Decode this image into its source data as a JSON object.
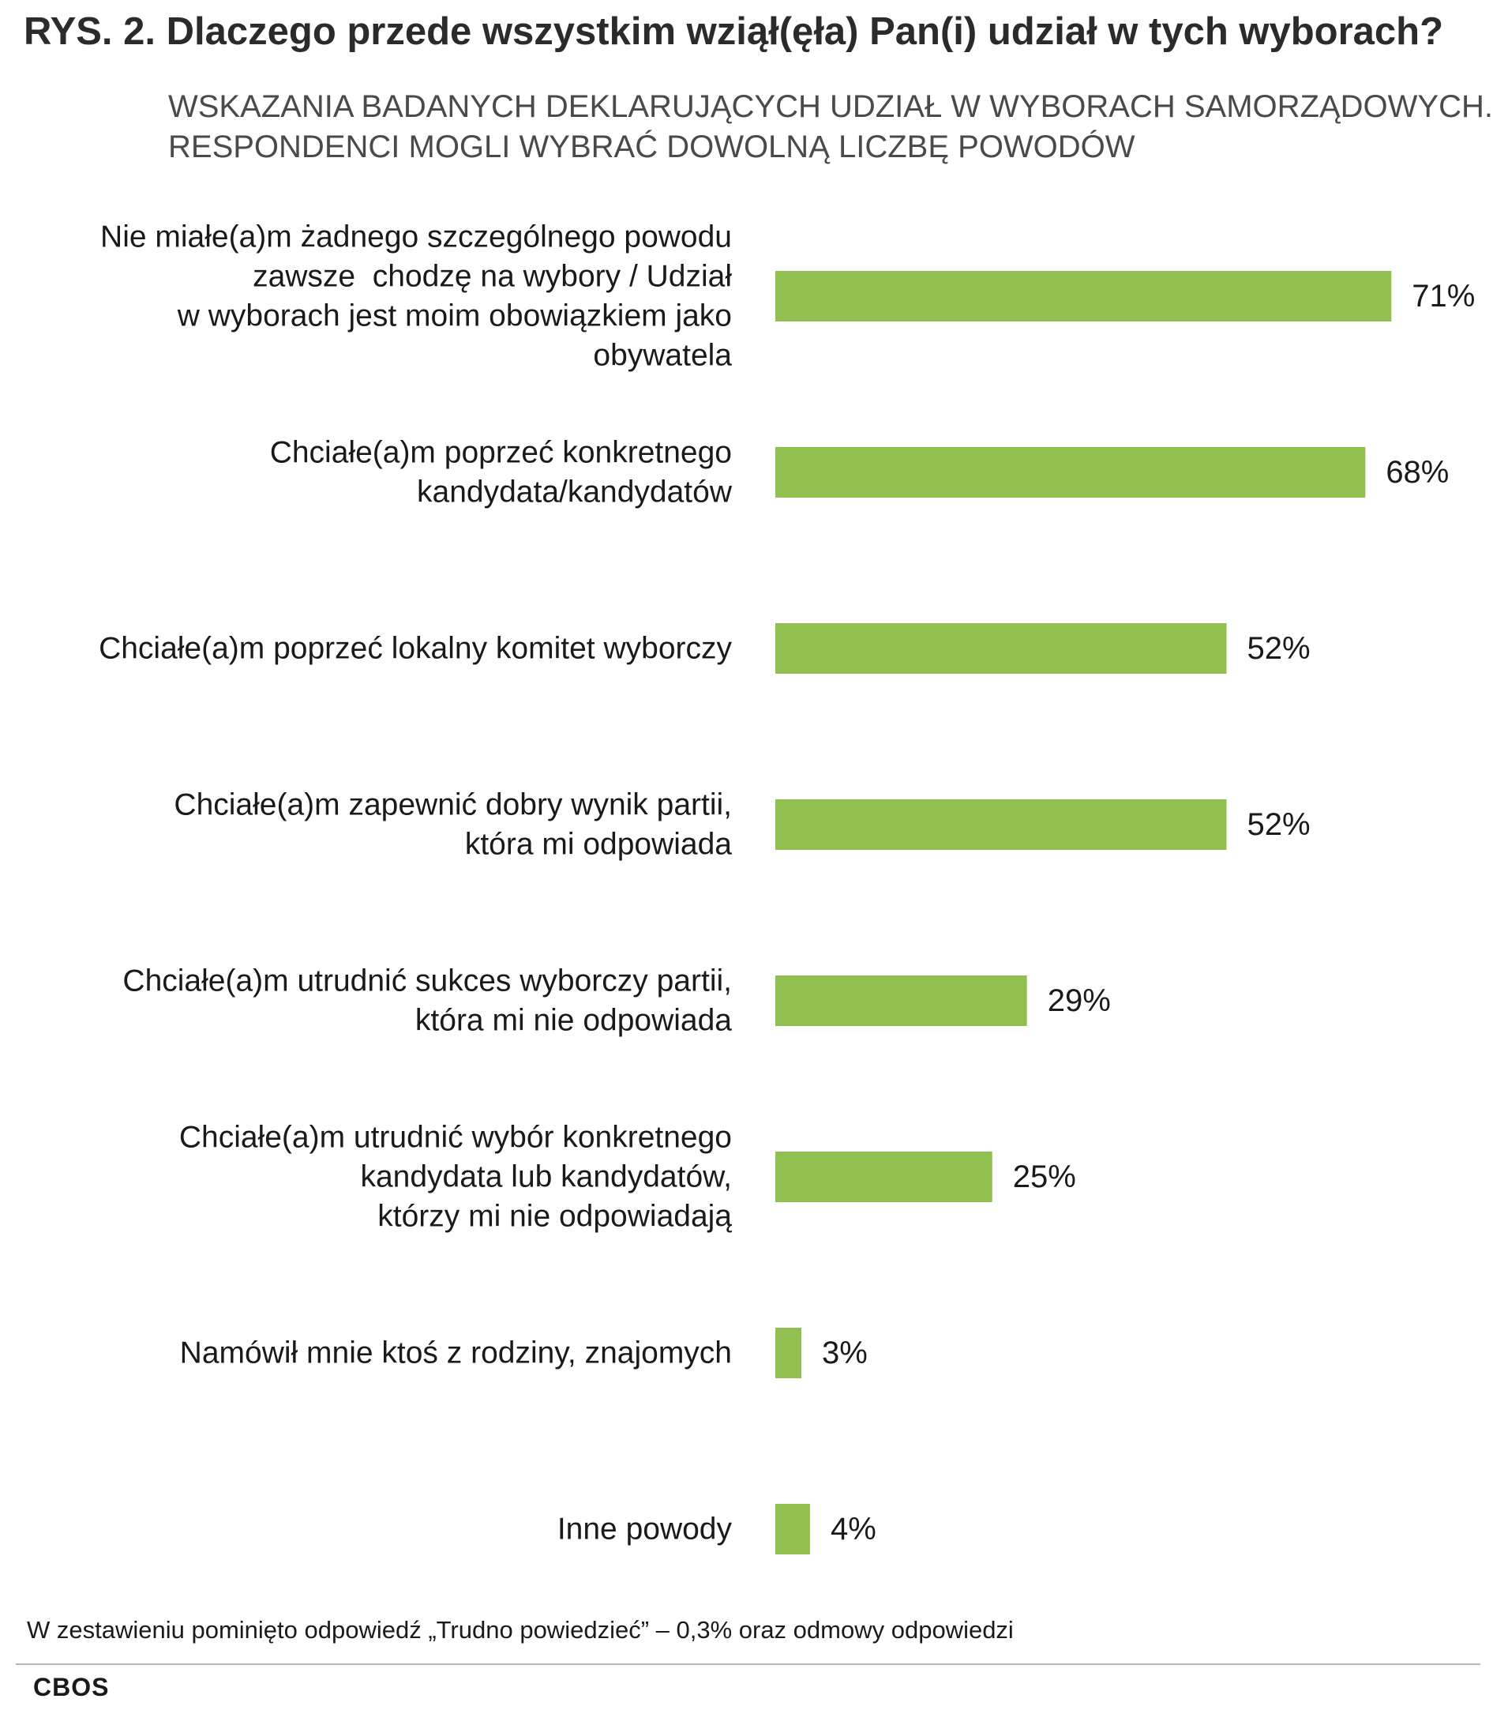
{
  "header": {
    "title": "RYS. 2. Dlaczego przede wszystkim wziął(ęła) Pan(i) udział w tych wyborach?",
    "subtitle_lines": [
      "WSKAZANIA BADANYCH DEKLARUJĄCYCH UDZIAŁ W WYBORACH SAMORZĄDOWYCH.",
      "RESPONDENCI MOGLI WYBRAĆ DOWOLNĄ LICZBĘ POWODÓW"
    ]
  },
  "chart_data": {
    "type": "bar",
    "orientation": "horizontal",
    "title": "RYS. 2. Dlaczego przede wszystkim wziął(ęła) Pan(i) udział w tych wyborach?",
    "subtitle": "WSKAZANIA BADANYCH DEKLARUJĄCYCH UDZIAŁ W WYBORACH SAMORZĄDOWYCH. RESPONDENCI MOGLI WYBRAĆ DOWOLNĄ LICZBĘ POWODÓW",
    "xlabel": "",
    "ylabel": "",
    "xlim": [
      0,
      100
    ],
    "unit": "%",
    "grid": false,
    "bar_color": "#92c050",
    "categories": [
      [
        "Nie miałe(a)m żadnego szczególnego powodu",
        "zawsze  chodzę na wybory / Udział",
        "w wyborach jest moim obowiązkiem jako",
        "obywatela"
      ],
      [
        "Chciałe(a)m poprzeć konkretnego",
        "kandydata/kandydatów"
      ],
      [
        "Chciałe(a)m poprzeć lokalny komitet wyborczy"
      ],
      [
        "Chciałe(a)m zapewnić dobry wynik partii,",
        "która mi odpowiada"
      ],
      [
        "Chciałe(a)m utrudnić sukces wyborczy partii,",
        "która mi nie odpowiada"
      ],
      [
        "Chciałe(a)m utrudnić wybór konkretnego",
        "kandydata lub kandydatów,",
        "którzy mi nie odpowiadają"
      ],
      [
        "Namówił mnie ktoś z rodziny, znajomych"
      ],
      [
        "Inne powody"
      ]
    ],
    "values": [
      71,
      68,
      52,
      52,
      29,
      25,
      3,
      4
    ],
    "value_labels": [
      "71%",
      "68%",
      "52%",
      "52%",
      "29%",
      "25%",
      "3%",
      "4%"
    ]
  },
  "footnote": "W zestawieniu pominięto odpowiedź „Trudno powiedzieć” – 0,3% oraz odmowy odpowiedzi",
  "source": "CBOS"
}
